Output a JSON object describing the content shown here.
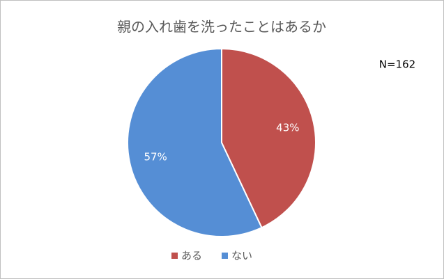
{
  "chart_data": {
    "type": "pie",
    "title": "親の入れ歯を洗ったことはあるか",
    "annotation": "N=162",
    "categories": [
      "ある",
      "ない"
    ],
    "values": [
      43,
      57
    ],
    "value_labels": [
      "43%",
      "57%"
    ],
    "colors": [
      "#c0504d",
      "#558ed5"
    ],
    "legend": "bottom"
  }
}
